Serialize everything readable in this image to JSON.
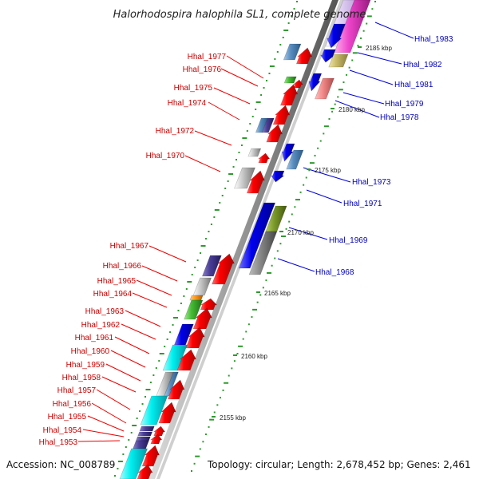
{
  "map": {
    "title": "Halorhodospira halophila SL1, complete genome",
    "footer_accession": "Accession: NC_008789",
    "footer_topology": "Topology: circular; Length: 2,678,452 bp; Genes: 2,461",
    "colors": {
      "left_label": "#cc0000",
      "right_label": "#0000bb",
      "backbone": "#8a8a8a",
      "tick": "#2e9a2e"
    },
    "kbp_markers": [
      "2155 kbp",
      "2160 kbp",
      "2165 kbp",
      "2170 kbp",
      "2175 kbp",
      "2180 kbp",
      "2185 kbp"
    ],
    "left_labels": [
      "Hhal_1977",
      "Hhal_1976",
      "Hhal_1975",
      "Hhal_1974",
      "Hhal_1972",
      "Hhal_1970",
      "Hhal_1967",
      "Hhal_1966",
      "Hhal_1965",
      "Hhal_1964",
      "Hhal_1963",
      "Hhal_1962",
      "Hhal_1961",
      "Hhal_1960",
      "Hhal_1959",
      "Hhal_1958",
      "Hhal_1957",
      "Hhal_1956",
      "Hhal_1955",
      "Hhal_1954",
      "Hhal_1953"
    ],
    "right_labels": [
      "Hhal_1983",
      "Hhal_1982",
      "Hhal_1981",
      "Hhal_1979",
      "Hhal_1978",
      "Hhal_1973",
      "Hhal_1971",
      "Hhal_1969",
      "Hhal_1968"
    ]
  }
}
